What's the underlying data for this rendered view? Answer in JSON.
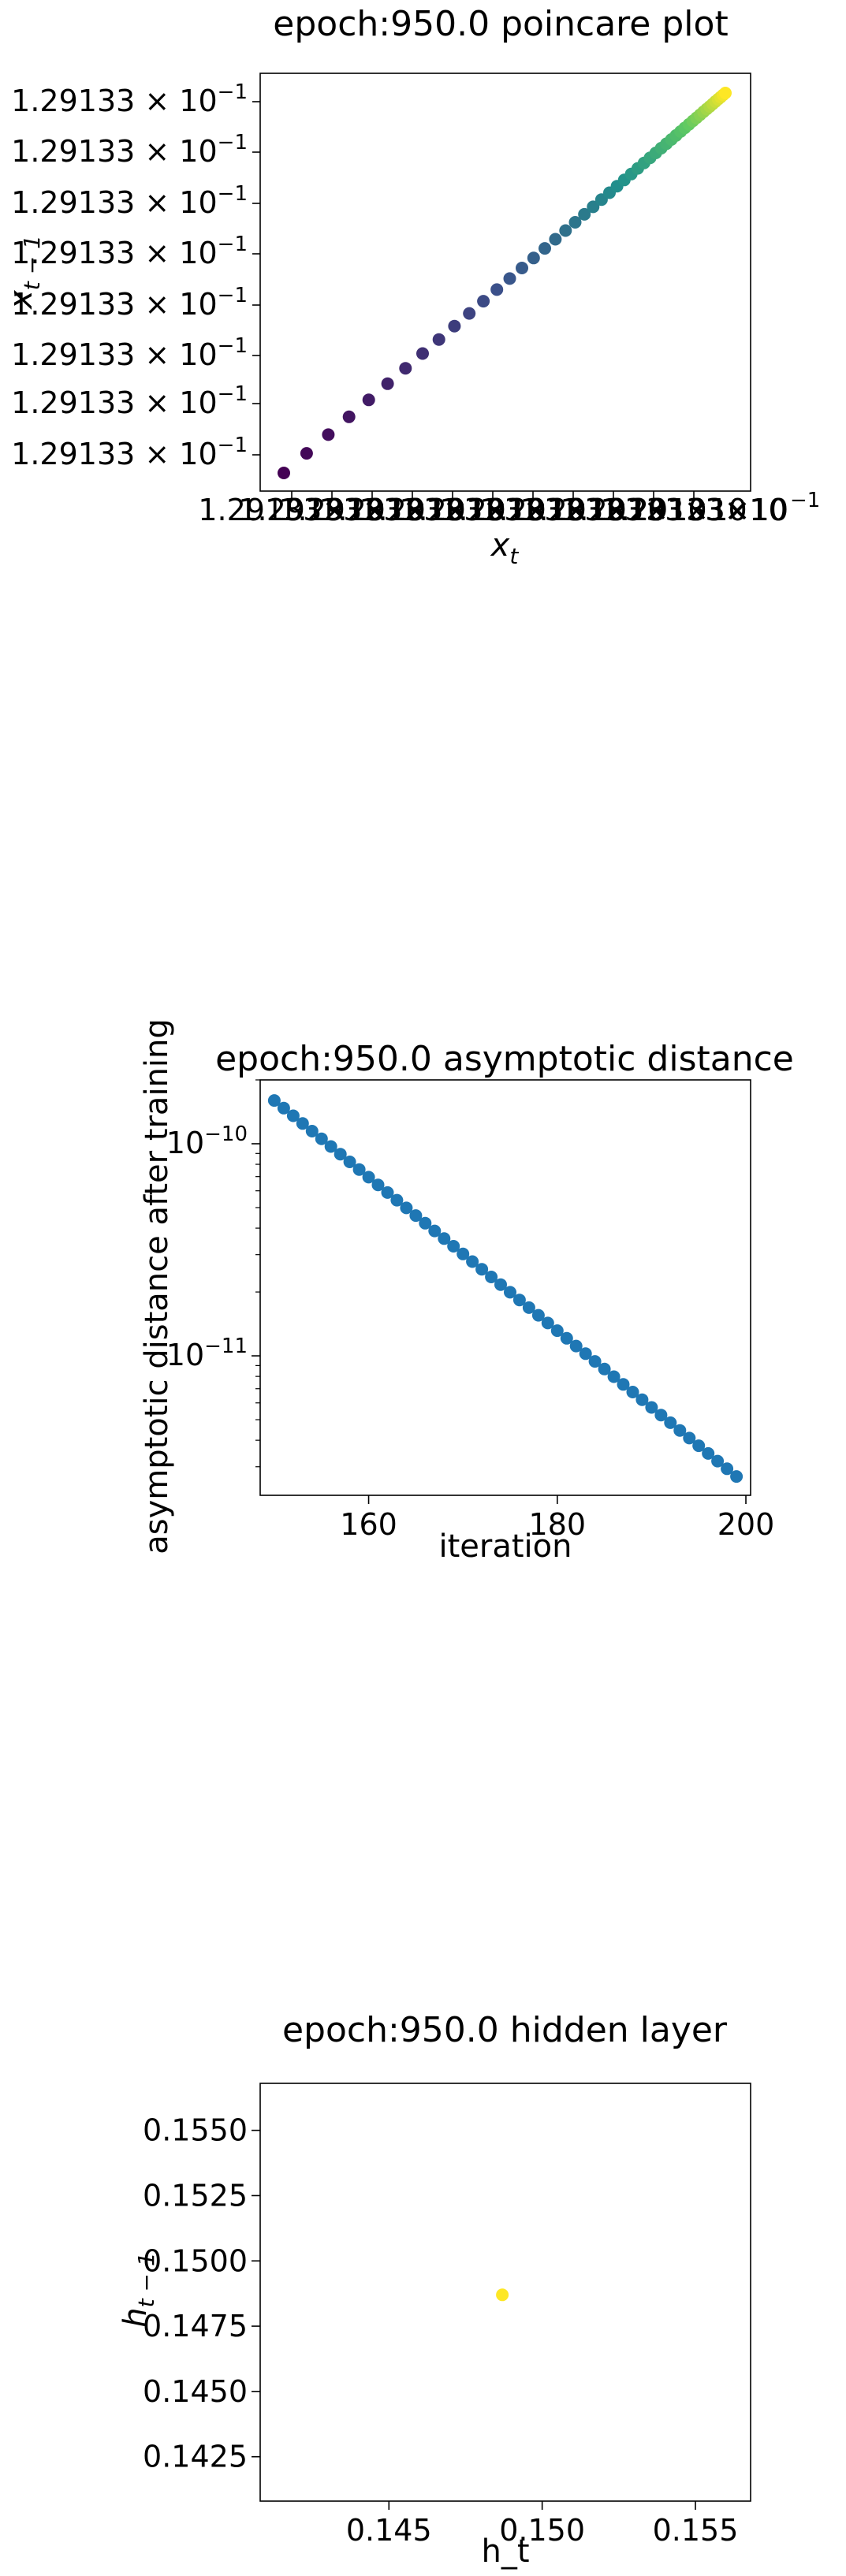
{
  "chart_data": [
    {
      "type": "scatter",
      "title": "epoch:950.0 poincare plot",
      "xlabel": "x",
      "xlabel_sub": "t",
      "ylabel": "x",
      "ylabel_sub": "t − 1",
      "colormap": "viridis",
      "x_tick_labels": [
        "1.29133×10",
        "1.29133×10",
        "1.29133×10",
        "1.29133×10",
        "1.29133×10",
        "1.29133×10",
        "1.29133×10",
        "1.29133×10",
        "1.29133×10",
        "1.29133×10",
        "1.29133×10"
      ],
      "x_tick_exponent": "−1",
      "y_tick_labels": [
        "1.29133 × 10",
        "1.29133 × 10",
        "1.29133 × 10",
        "1.29133 × 10",
        "1.29133 × 10",
        "1.29133 × 10",
        "1.29133 × 10",
        "1.29133 × 10"
      ],
      "y_tick_exponent": "−1",
      "note": "points lie on the diagonal x_{t-1} = x_t; spacing shrinks geometrically as the orbit converges",
      "points": {
        "count": 50,
        "ratio": 0.9534
      }
    },
    {
      "type": "scatter",
      "title": "epoch:950.0 asymptotic distance",
      "xlabel": "iteration",
      "ylabel": "asymptotic distance after training",
      "yscale": "log",
      "color": "#1f77b4",
      "xlim": [
        148.5,
        200.5
      ],
      "ylim": [
        2.2e-12,
        2e-10
      ],
      "x_ticks": [
        160,
        180,
        200
      ],
      "y_major_ticks": [
        1e-10,
        1e-11
      ],
      "y_tick_base": "10",
      "y_tick_exponents": [
        "−10",
        "−11"
      ],
      "x": [
        150,
        151,
        152,
        153,
        154,
        155,
        156,
        157,
        158,
        159,
        160,
        161,
        162,
        163,
        164,
        165,
        166,
        167,
        168,
        169,
        170,
        171,
        172,
        173,
        174,
        175,
        176,
        177,
        178,
        179,
        180,
        181,
        182,
        183,
        184,
        185,
        186,
        187,
        188,
        189,
        190,
        191,
        192,
        193,
        194,
        195,
        196,
        197,
        198,
        199
      ],
      "y_first": 1.6e-10,
      "y_last": 2.7e-12
    },
    {
      "type": "scatter",
      "title": "epoch:950.0 hidden layer",
      "xlabel": "h_t",
      "ylabel": "h",
      "ylabel_sub": "t − 1",
      "xlim": [
        0.1408,
        0.1568
      ],
      "ylim": [
        0.1408,
        0.1568
      ],
      "x_ticks": [
        "0.145",
        "0.150",
        "0.155"
      ],
      "y_ticks": [
        "0.1425",
        "0.1450",
        "0.1475",
        "0.1500",
        "0.1525",
        "0.1550"
      ],
      "x_tick_values": [
        0.145,
        0.15,
        0.155
      ],
      "y_tick_values": [
        0.1425,
        0.145,
        0.1475,
        0.15,
        0.1525,
        0.155
      ],
      "color": "#fde725",
      "x": [
        0.1487
      ],
      "y": [
        0.1487
      ]
    }
  ]
}
